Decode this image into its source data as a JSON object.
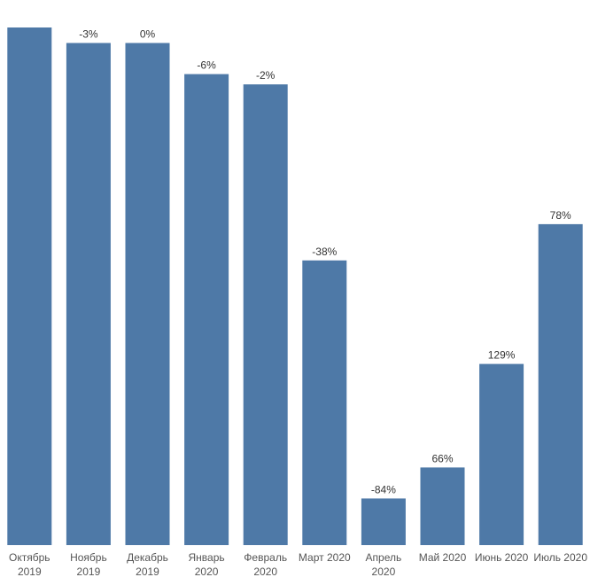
{
  "chart_data": {
    "type": "bar",
    "title": "",
    "xlabel": "",
    "ylabel": "",
    "categories": [
      [
        "Октябрь",
        "2019"
      ],
      [
        "Ноябрь",
        "2019"
      ],
      [
        "Декабрь",
        "2019"
      ],
      [
        "Январь",
        "2020"
      ],
      [
        "Февраль",
        "2020"
      ],
      [
        "Март 2020"
      ],
      [
        "Апрель",
        "2020"
      ],
      [
        "Май 2020"
      ],
      [
        "Июнь 2020"
      ],
      [
        "Июль 2020"
      ]
    ],
    "values": [
      100,
      97,
      97,
      91,
      89,
      55,
      9,
      15,
      35,
      62
    ],
    "data_labels": [
      "",
      "-3%",
      "0%",
      "-6%",
      "-2%",
      "-38%",
      "-84%",
      "66%",
      "129%",
      "78%"
    ],
    "ylim": [
      0,
      100
    ],
    "grid": false,
    "bar_color": "#4e79a7"
  }
}
